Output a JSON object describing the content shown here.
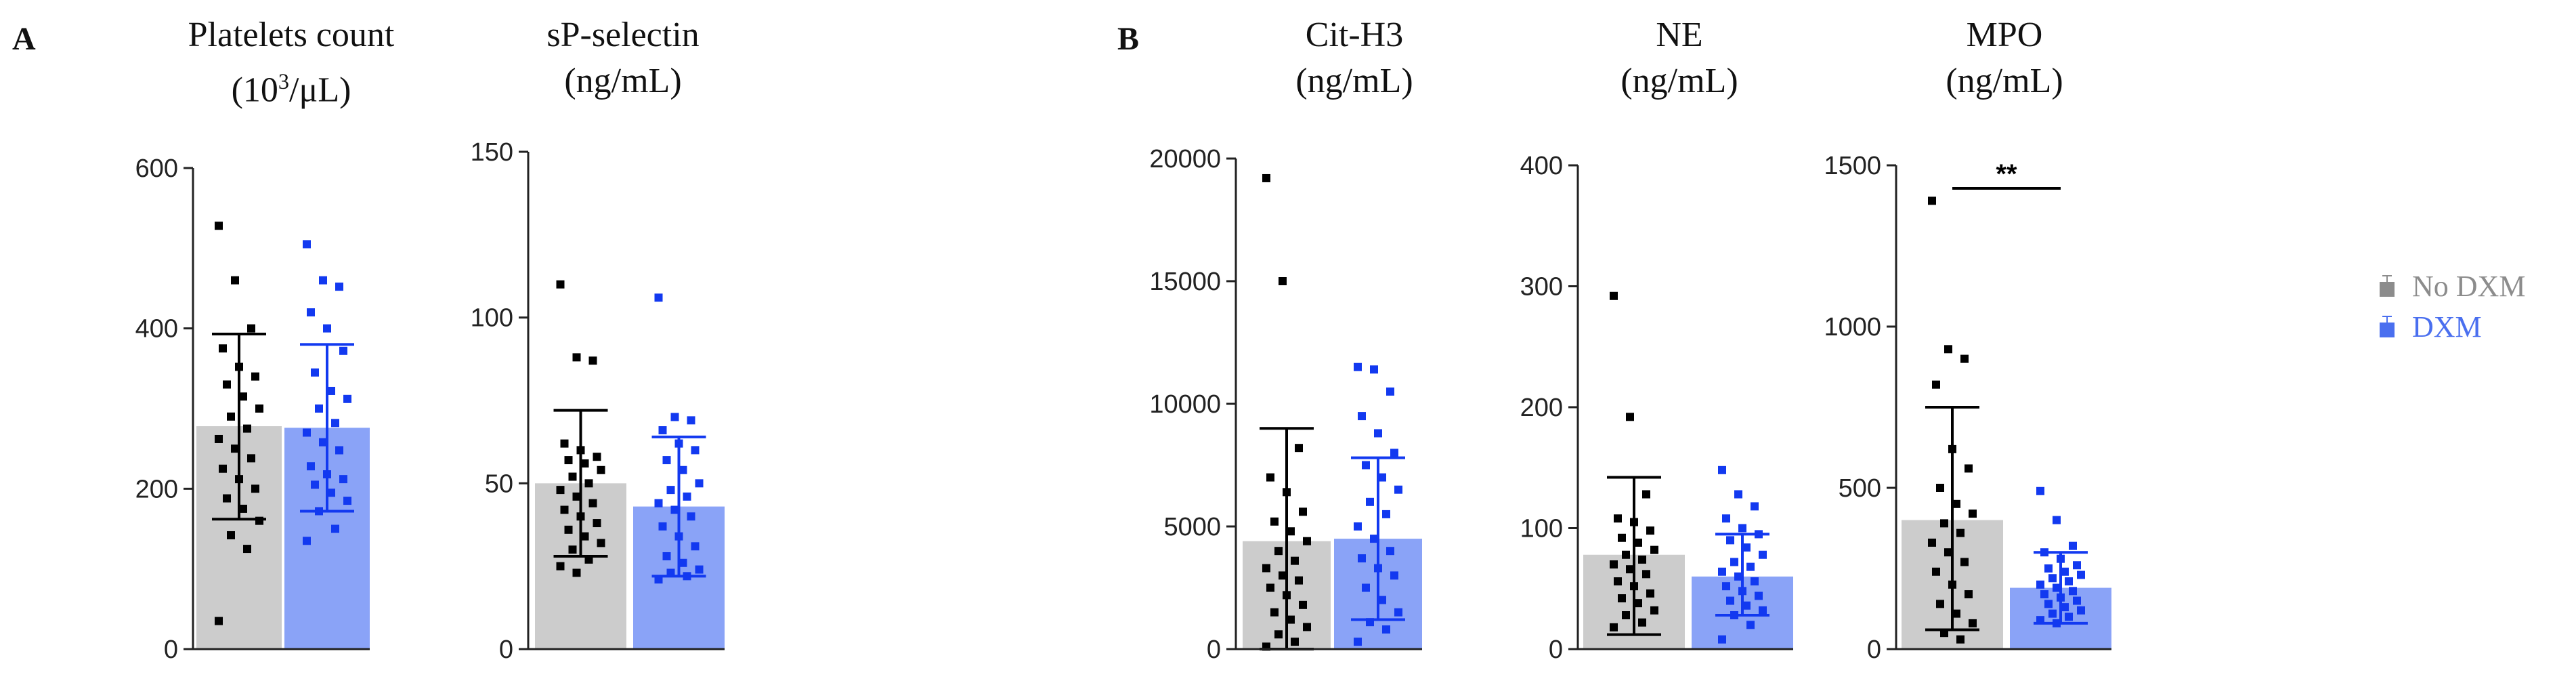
{
  "panels": {
    "a": "A",
    "b": "B"
  },
  "legend": [
    {
      "label": "No DXM",
      "color": "#8c8c8c",
      "text_color": "#8c8c8c"
    },
    {
      "label": "DXM",
      "color": "#4a6fef",
      "text_color": "#4a6fef"
    }
  ],
  "chart_data": [
    {
      "type": "bar",
      "title": "Platelets count",
      "unit_base": "(10",
      "unit_sup": "3",
      "unit_rest": "/μL)",
      "yticks": [
        0,
        200,
        400,
        600
      ],
      "ylim": [
        0,
        600
      ],
      "series": [
        {
          "name": "No DXM",
          "mean": 278,
          "err_low": 162,
          "err_high": 393,
          "points": [
            528,
            460,
            400,
            375,
            352,
            340,
            330,
            315,
            300,
            290,
            275,
            262,
            250,
            238,
            225,
            212,
            200,
            188,
            175,
            160,
            142,
            125,
            35
          ]
        },
        {
          "name": "DXM",
          "mean": 276,
          "err_low": 172,
          "err_high": 380,
          "points": [
            505,
            460,
            452,
            420,
            400,
            372,
            345,
            322,
            312,
            300,
            282,
            270,
            258,
            248,
            228,
            218,
            212,
            205,
            195,
            185,
            172,
            150,
            135
          ]
        }
      ]
    },
    {
      "type": "bar",
      "title": "sP-selectin",
      "unit_base": "(ng/mL)",
      "unit_sup": "",
      "unit_rest": "",
      "yticks": [
        0,
        50,
        100,
        150
      ],
      "ylim": [
        0,
        150
      ],
      "series": [
        {
          "name": "No DXM",
          "mean": 50,
          "err_low": 28,
          "err_high": 72,
          "points": [
            110,
            88,
            87,
            62,
            60,
            58,
            57,
            56,
            54,
            52,
            50,
            48,
            46,
            44,
            42,
            40,
            38,
            36,
            34,
            32,
            30,
            27,
            25,
            23
          ]
        },
        {
          "name": "DXM",
          "mean": 43,
          "err_low": 22,
          "err_high": 64,
          "points": [
            106,
            70,
            69,
            66,
            62,
            60,
            57,
            54,
            50,
            48,
            46,
            44,
            42,
            40,
            37,
            34,
            31,
            28,
            26,
            24,
            23,
            22,
            21
          ]
        }
      ]
    },
    {
      "type": "bar",
      "title": "Cit-H3",
      "unit_base": "(ng/mL)",
      "unit_sup": "",
      "unit_rest": "",
      "yticks": [
        0,
        5000,
        10000,
        15000,
        20000
      ],
      "ylim": [
        0,
        20000
      ],
      "series": [
        {
          "name": "No DXM",
          "mean": 4400,
          "err_low": 0,
          "err_high": 9000,
          "points": [
            19200,
            15000,
            8200,
            7000,
            6400,
            5600,
            5200,
            4800,
            4400,
            4000,
            3600,
            3300,
            3000,
            2800,
            2500,
            2200,
            1800,
            1500,
            1200,
            900,
            600,
            300,
            100
          ]
        },
        {
          "name": "DXM",
          "mean": 4500,
          "err_low": 1200,
          "err_high": 7800,
          "points": [
            11500,
            11400,
            10500,
            9500,
            8800,
            8000,
            7500,
            7000,
            6500,
            6000,
            5500,
            5000,
            4500,
            4000,
            3700,
            3300,
            3000,
            2500,
            2000,
            1500,
            1100,
            800,
            300
          ]
        }
      ]
    },
    {
      "type": "bar",
      "title": "NE",
      "unit_base": "(ng/mL)",
      "unit_sup": "",
      "unit_rest": "",
      "yticks": [
        0,
        100,
        200,
        300,
        400
      ],
      "ylim": [
        0,
        400
      ],
      "series": [
        {
          "name": "No DXM",
          "mean": 78,
          "err_low": 12,
          "err_high": 142,
          "points": [
            292,
            192,
            128,
            108,
            105,
            98,
            92,
            88,
            82,
            78,
            74,
            70,
            66,
            62,
            56,
            52,
            46,
            42,
            38,
            32,
            28,
            22,
            18
          ]
        },
        {
          "name": "DXM",
          "mean": 60,
          "err_low": 28,
          "err_high": 95,
          "points": [
            148,
            128,
            118,
            108,
            100,
            95,
            90,
            84,
            78,
            72,
            68,
            64,
            60,
            56,
            52,
            48,
            44,
            40,
            36,
            32,
            28,
            20,
            8
          ]
        }
      ]
    },
    {
      "type": "bar",
      "title": "MPO",
      "unit_base": "(ng/mL)",
      "unit_sup": "",
      "unit_rest": "",
      "yticks": [
        0,
        500,
        1000,
        1500
      ],
      "ylim": [
        0,
        1500
      ],
      "annotation": "**",
      "series": [
        {
          "name": "No DXM",
          "mean": 400,
          "err_low": 60,
          "err_high": 750,
          "points": [
            1390,
            930,
            900,
            820,
            620,
            560,
            500,
            450,
            420,
            390,
            360,
            330,
            300,
            270,
            240,
            200,
            170,
            140,
            110,
            80,
            50,
            30
          ]
        },
        {
          "name": "DXM",
          "mean": 190,
          "err_low": 80,
          "err_high": 300,
          "points": [
            490,
            400,
            320,
            300,
            280,
            260,
            250,
            240,
            230,
            220,
            210,
            200,
            190,
            180,
            170,
            160,
            150,
            140,
            130,
            120,
            110,
            100,
            90,
            80
          ]
        }
      ]
    }
  ]
}
